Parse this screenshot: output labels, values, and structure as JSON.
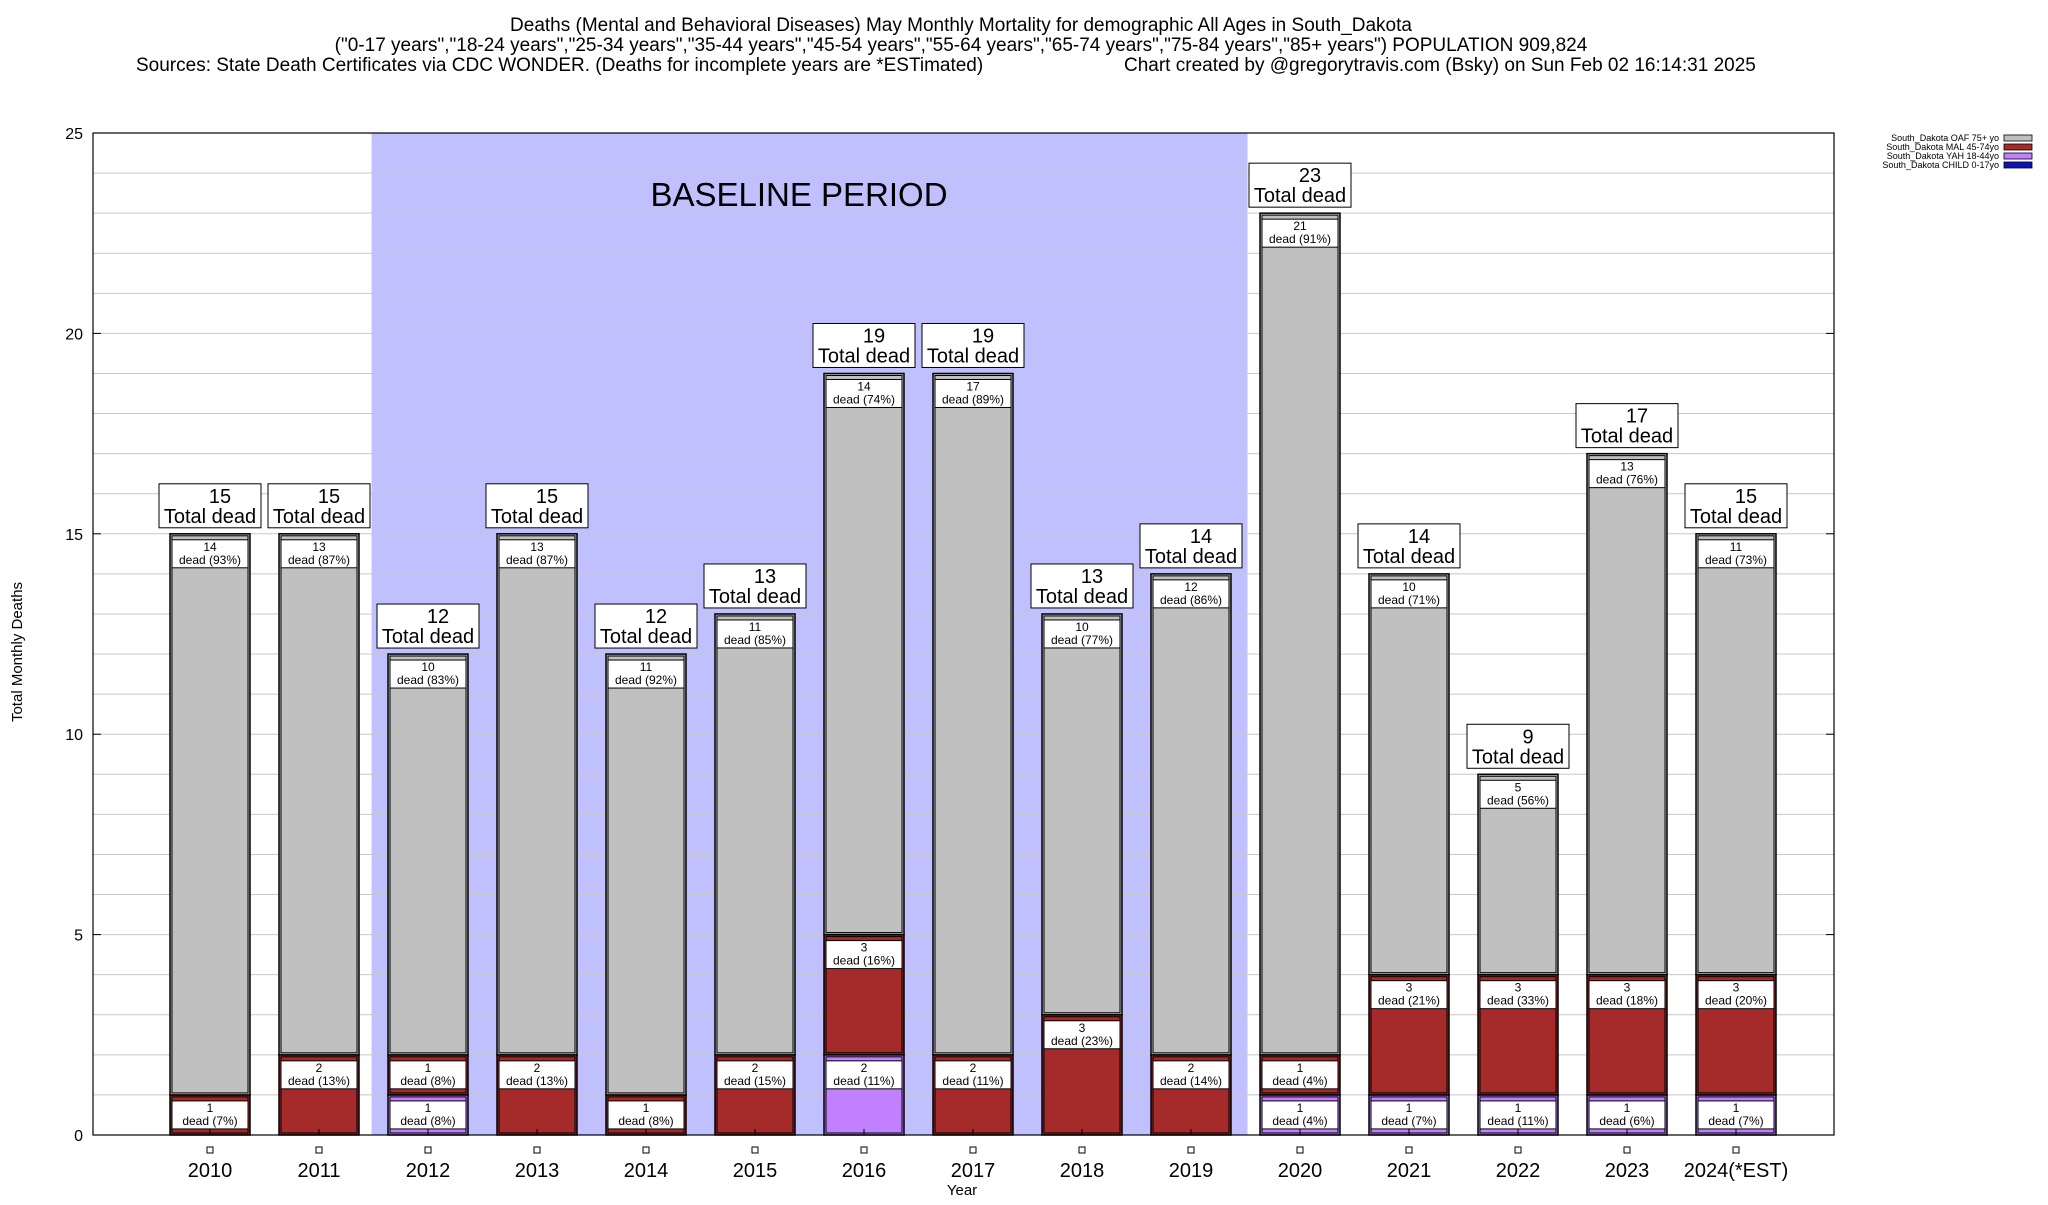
{
  "chart_data": {
    "type": "bar",
    "stacked": true,
    "title_lines": [
      "Deaths (Mental and Behavioral Diseases) May Monthly Mortality for demographic All Ages in South_Dakota",
      "(\"0-17 years\",\"18-24 years\",\"25-34 years\",\"35-44 years\",\"45-54 years\",\"55-64 years\",\"65-74 years\",\"75-84 years\",\"85+ years\") POPULATION 909,824"
    ],
    "sources_left": "Sources: State Death Certificates via CDC WONDER. (Deaths for incomplete years are *ESTimated)",
    "sources_right": "Chart created by @gregorytravis.com (Bsky) on Sun Feb 02 16:14:31 2025",
    "xlabel": "Year",
    "ylabel": "Total Monthly Deaths",
    "ylim": [
      0,
      25
    ],
    "yticks": [
      0,
      5,
      10,
      15,
      20,
      25
    ],
    "grid": true,
    "legend_position": "top-right",
    "baseline_label": "BASELINE PERIOD",
    "baseline_range": [
      "2012",
      "2019"
    ],
    "total_suffix": "Total dead",
    "segment_suffix": "dead",
    "categories": [
      "2010",
      "2011",
      "2012",
      "2013",
      "2014",
      "2015",
      "2016",
      "2017",
      "2018",
      "2019",
      "2020",
      "2021",
      "2022",
      "2023",
      "2024(*EST)"
    ],
    "totals": [
      15,
      15,
      12,
      15,
      12,
      13,
      19,
      19,
      13,
      14,
      23,
      14,
      9,
      17,
      15
    ],
    "series": [
      {
        "name": "South_Dakota CHILD 0-17yo",
        "color": "#1010c0",
        "values": [
          0,
          0,
          0,
          0,
          0,
          0,
          0,
          0,
          0,
          0,
          0,
          0,
          0,
          0,
          0
        ],
        "pct": [
          "",
          "",
          "",
          "",
          "",
          "",
          "",
          "",
          "",
          "",
          "",
          "",
          "",
          "",
          ""
        ]
      },
      {
        "name": "South_Dakota YAH 18-44yo",
        "color": "#c080ff",
        "values": [
          0,
          0,
          1,
          0,
          0,
          0,
          2,
          0,
          0,
          0,
          1,
          1,
          1,
          1,
          1
        ],
        "pct": [
          "",
          "",
          "8%",
          "",
          "",
          "",
          "11%",
          "",
          "",
          "",
          "4%",
          "7%",
          "11%",
          "6%",
          "7%"
        ]
      },
      {
        "name": "South_Dakota MAL 45-74yo",
        "color": "#a52a2a",
        "values": [
          1,
          2,
          1,
          2,
          1,
          2,
          3,
          2,
          3,
          2,
          1,
          3,
          3,
          3,
          3
        ],
        "pct": [
          "7%",
          "13%",
          "8%",
          "13%",
          "8%",
          "15%",
          "16%",
          "11%",
          "23%",
          "14%",
          "4%",
          "21%",
          "33%",
          "18%",
          "20%"
        ]
      },
      {
        "name": "South_Dakota OAF 75+ yo",
        "color": "#c0c0c0",
        "values": [
          14,
          13,
          10,
          13,
          11,
          11,
          14,
          17,
          10,
          12,
          21,
          10,
          5,
          13,
          11
        ],
        "pct": [
          "93%",
          "87%",
          "83%",
          "87%",
          "92%",
          "85%",
          "74%",
          "89%",
          "77%",
          "86%",
          "91%",
          "71%",
          "56%",
          "76%",
          "73%"
        ]
      }
    ],
    "legend_order": [
      "South_Dakota OAF 75+ yo",
      "South_Dakota MAL 45-74yo",
      "South_Dakota YAH 18-44yo",
      "South_Dakota CHILD 0-17yo"
    ],
    "colors": {
      "baseline_shade": "#c0c0ff",
      "grid": "#c8c8c8"
    }
  }
}
